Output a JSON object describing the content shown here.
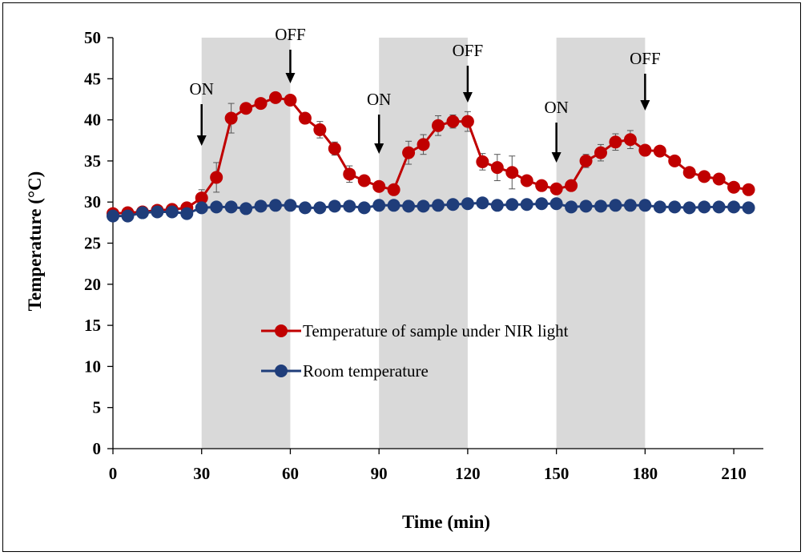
{
  "chart_data": {
    "type": "line",
    "title": "",
    "xlabel": "Time (min)",
    "ylabel": "Temperature (°C)",
    "xlim": [
      0,
      220
    ],
    "ylim": [
      0,
      50
    ],
    "xticks": [
      0,
      30,
      60,
      90,
      120,
      150,
      180,
      210
    ],
    "yticks": [
      0,
      5,
      10,
      15,
      20,
      25,
      30,
      35,
      40,
      45,
      50
    ],
    "grid": false,
    "legend": "center",
    "shaded_intervals": [
      [
        30,
        60
      ],
      [
        90,
        120
      ],
      [
        150,
        180
      ]
    ],
    "annotations": [
      {
        "text": "ON",
        "x": 30
      },
      {
        "text": "OFF",
        "x": 60
      },
      {
        "text": "ON",
        "x": 90
      },
      {
        "text": "OFF",
        "x": 120
      },
      {
        "text": "ON",
        "x": 150
      },
      {
        "text": "OFF",
        "x": 180
      }
    ],
    "x": [
      0,
      5,
      10,
      15,
      20,
      25,
      30,
      35,
      40,
      45,
      50,
      55,
      60,
      65,
      70,
      75,
      80,
      85,
      90,
      95,
      100,
      105,
      110,
      115,
      120,
      125,
      130,
      135,
      140,
      145,
      150,
      155,
      160,
      165,
      170,
      175,
      180,
      185,
      190,
      195,
      200,
      205,
      210,
      215
    ],
    "series": [
      {
        "name": "Temperature of sample under NIR light",
        "color": "#c00000",
        "values": [
          28.6,
          28.7,
          28.8,
          29.0,
          29.1,
          29.3,
          30.5,
          33.0,
          40.2,
          41.4,
          42.0,
          42.7,
          42.4,
          40.2,
          38.8,
          36.5,
          33.4,
          32.6,
          31.9,
          31.5,
          36.0,
          37.0,
          39.3,
          39.8,
          39.8,
          34.9,
          34.2,
          33.6,
          32.6,
          32.0,
          31.6,
          32.0,
          35.0,
          36.0,
          37.3,
          37.6,
          36.3,
          36.2,
          35.0,
          33.6,
          33.1,
          32.8,
          31.8,
          31.5
        ],
        "errors": [
          0.3,
          0.3,
          0.3,
          0.3,
          0.3,
          0.3,
          1.0,
          1.8,
          1.8,
          0.6,
          0.6,
          0.5,
          0.6,
          0.6,
          1.0,
          0.8,
          1.0,
          0.5,
          0.4,
          0.4,
          1.4,
          1.2,
          1.2,
          0.8,
          1.2,
          1.0,
          1.6,
          2.0,
          0.6,
          0.4,
          0.4,
          0.5,
          0.8,
          1.0,
          1.0,
          1.1,
          0.5,
          0.4,
          0.4,
          0.4,
          0.4,
          0.4,
          0.4,
          0.4
        ]
      },
      {
        "name": "Room temperature",
        "color": "#1f3d7a",
        "values": [
          28.3,
          28.3,
          28.7,
          28.8,
          28.8,
          28.6,
          29.3,
          29.4,
          29.4,
          29.2,
          29.5,
          29.6,
          29.6,
          29.3,
          29.3,
          29.5,
          29.5,
          29.3,
          29.6,
          29.6,
          29.5,
          29.5,
          29.6,
          29.7,
          29.8,
          29.9,
          29.6,
          29.7,
          29.7,
          29.8,
          29.8,
          29.4,
          29.5,
          29.5,
          29.6,
          29.6,
          29.6,
          29.4,
          29.4,
          29.3,
          29.4,
          29.4,
          29.4,
          29.3
        ],
        "errors": [
          0.4,
          0.3,
          0.3,
          0.3,
          0.3,
          0.4,
          0.3,
          0.3,
          0.3,
          0.3,
          0.3,
          0.3,
          0.3,
          0.3,
          0.3,
          0.3,
          0.3,
          0.3,
          0.3,
          0.3,
          0.3,
          0.3,
          0.3,
          0.3,
          0.3,
          0.5,
          0.3,
          0.3,
          0.3,
          0.3,
          0.3,
          0.3,
          0.3,
          0.3,
          0.3,
          0.3,
          0.3,
          0.3,
          0.3,
          0.3,
          0.3,
          0.3,
          0.3,
          0.3
        ]
      }
    ]
  }
}
